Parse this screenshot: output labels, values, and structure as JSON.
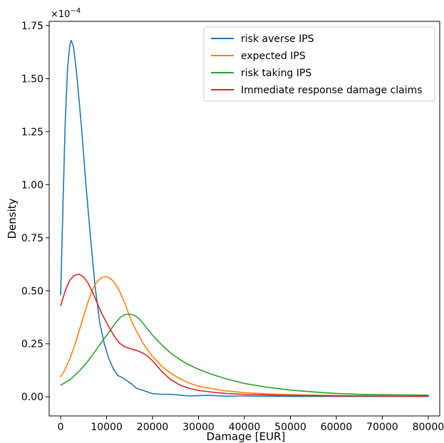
{
  "chart_data": {
    "type": "line",
    "xlabel": "Damage [EUR]",
    "ylabel": "Density",
    "y_scale_prefix": "×10",
    "y_scale_exponent": "−4",
    "xlim": [
      -2500,
      82500
    ],
    "ylim": [
      -0.09,
      1.77
    ],
    "x_ticks": [
      0,
      10000,
      20000,
      30000,
      40000,
      50000,
      60000,
      70000,
      80000
    ],
    "x_tick_labels": [
      "0",
      "10000",
      "20000",
      "30000",
      "40000",
      "50000",
      "60000",
      "70000",
      "80000"
    ],
    "y_ticks": [
      0.0,
      0.25,
      0.5,
      0.75,
      1.0,
      1.25,
      1.5,
      1.75
    ],
    "y_tick_labels": [
      "0.00",
      "0.25",
      "0.50",
      "0.75",
      "1.00",
      "1.25",
      "1.50",
      "1.75"
    ],
    "grid": false,
    "legend_position": "top-right",
    "series": [
      {
        "name": "risk averse IPS",
        "color": "#1f77b4",
        "points": [
          [
            0,
            0.48
          ],
          [
            500,
            0.9
          ],
          [
            1000,
            1.3
          ],
          [
            1500,
            1.55
          ],
          [
            2000,
            1.66
          ],
          [
            2300,
            1.68
          ],
          [
            2800,
            1.65
          ],
          [
            3500,
            1.52
          ],
          [
            4500,
            1.28
          ],
          [
            5500,
            1.0
          ],
          [
            6500,
            0.75
          ],
          [
            7500,
            0.52
          ],
          [
            8500,
            0.35
          ],
          [
            9500,
            0.25
          ],
          [
            10500,
            0.18
          ],
          [
            11500,
            0.13
          ],
          [
            12500,
            0.1
          ],
          [
            13500,
            0.09
          ],
          [
            14500,
            0.075
          ],
          [
            15500,
            0.06
          ],
          [
            16500,
            0.04
          ],
          [
            18000,
            0.03
          ],
          [
            20000,
            0.015
          ],
          [
            22000,
            0.012
          ],
          [
            24000,
            0.012
          ],
          [
            26000,
            0.008
          ],
          [
            28000,
            0.004
          ],
          [
            30000,
            0.006
          ],
          [
            32000,
            0.007
          ],
          [
            34000,
            0.005
          ],
          [
            36000,
            0.003
          ],
          [
            38000,
            0.004
          ],
          [
            40000,
            0.004
          ],
          [
            45000,
            0.003
          ],
          [
            50000,
            0.002
          ],
          [
            55000,
            0.002
          ],
          [
            60000,
            0.002
          ],
          [
            65000,
            0.002
          ],
          [
            70000,
            0.002
          ],
          [
            75000,
            0.002
          ],
          [
            80000,
            0.002
          ]
        ]
      },
      {
        "name": "expected IPS",
        "color": "#ff7f0e",
        "points": [
          [
            0,
            0.095
          ],
          [
            1000,
            0.13
          ],
          [
            2000,
            0.18
          ],
          [
            3000,
            0.24
          ],
          [
            4000,
            0.31
          ],
          [
            5000,
            0.38
          ],
          [
            6000,
            0.45
          ],
          [
            7000,
            0.51
          ],
          [
            8000,
            0.545
          ],
          [
            9000,
            0.563
          ],
          [
            10000,
            0.567
          ],
          [
            11000,
            0.555
          ],
          [
            12000,
            0.53
          ],
          [
            13000,
            0.49
          ],
          [
            14000,
            0.44
          ],
          [
            15000,
            0.38
          ],
          [
            16000,
            0.33
          ],
          [
            17000,
            0.29
          ],
          [
            18000,
            0.25
          ],
          [
            20000,
            0.19
          ],
          [
            22000,
            0.145
          ],
          [
            24000,
            0.11
          ],
          [
            26000,
            0.085
          ],
          [
            28000,
            0.065
          ],
          [
            30000,
            0.05
          ],
          [
            33000,
            0.038
          ],
          [
            36000,
            0.028
          ],
          [
            40000,
            0.02
          ],
          [
            45000,
            0.014
          ],
          [
            50000,
            0.01
          ],
          [
            55000,
            0.008
          ],
          [
            60000,
            0.006
          ],
          [
            65000,
            0.005
          ],
          [
            70000,
            0.004
          ],
          [
            75000,
            0.004
          ],
          [
            80000,
            0.003
          ]
        ]
      },
      {
        "name": "risk taking IPS",
        "color": "#2ca02c",
        "points": [
          [
            0,
            0.055
          ],
          [
            2000,
            0.08
          ],
          [
            4000,
            0.12
          ],
          [
            6000,
            0.17
          ],
          [
            8000,
            0.23
          ],
          [
            10000,
            0.29
          ],
          [
            12000,
            0.35
          ],
          [
            13000,
            0.375
          ],
          [
            14000,
            0.388
          ],
          [
            15000,
            0.39
          ],
          [
            16000,
            0.385
          ],
          [
            17000,
            0.37
          ],
          [
            18000,
            0.345
          ],
          [
            20000,
            0.29
          ],
          [
            22000,
            0.245
          ],
          [
            24000,
            0.205
          ],
          [
            26000,
            0.175
          ],
          [
            28000,
            0.15
          ],
          [
            30000,
            0.13
          ],
          [
            33000,
            0.105
          ],
          [
            36000,
            0.085
          ],
          [
            40000,
            0.063
          ],
          [
            45000,
            0.045
          ],
          [
            50000,
            0.032
          ],
          [
            55000,
            0.023
          ],
          [
            60000,
            0.016
          ],
          [
            65000,
            0.012
          ],
          [
            70000,
            0.01
          ],
          [
            75000,
            0.009
          ],
          [
            80000,
            0.008
          ]
        ]
      },
      {
        "name": "Immediate response damage claims",
        "color": "#d62728",
        "points": [
          [
            0,
            0.43
          ],
          [
            1000,
            0.5
          ],
          [
            2000,
            0.55
          ],
          [
            3000,
            0.573
          ],
          [
            4000,
            0.578
          ],
          [
            5000,
            0.565
          ],
          [
            6000,
            0.535
          ],
          [
            7000,
            0.49
          ],
          [
            8000,
            0.44
          ],
          [
            9000,
            0.39
          ],
          [
            10000,
            0.35
          ],
          [
            11000,
            0.31
          ],
          [
            12000,
            0.275
          ],
          [
            13000,
            0.25
          ],
          [
            14000,
            0.235
          ],
          [
            15000,
            0.228
          ],
          [
            16000,
            0.222
          ],
          [
            17000,
            0.215
          ],
          [
            18000,
            0.205
          ],
          [
            19000,
            0.19
          ],
          [
            20000,
            0.17
          ],
          [
            21000,
            0.145
          ],
          [
            22000,
            0.12
          ],
          [
            24000,
            0.08
          ],
          [
            26000,
            0.055
          ],
          [
            28000,
            0.04
          ],
          [
            30000,
            0.03
          ],
          [
            33000,
            0.022
          ],
          [
            36000,
            0.016
          ],
          [
            40000,
            0.012
          ],
          [
            45000,
            0.009
          ],
          [
            50000,
            0.007
          ],
          [
            55000,
            0.006
          ],
          [
            60000,
            0.005
          ],
          [
            65000,
            0.004
          ],
          [
            70000,
            0.004
          ],
          [
            75000,
            0.003
          ],
          [
            80000,
            0.003
          ]
        ]
      }
    ]
  }
}
